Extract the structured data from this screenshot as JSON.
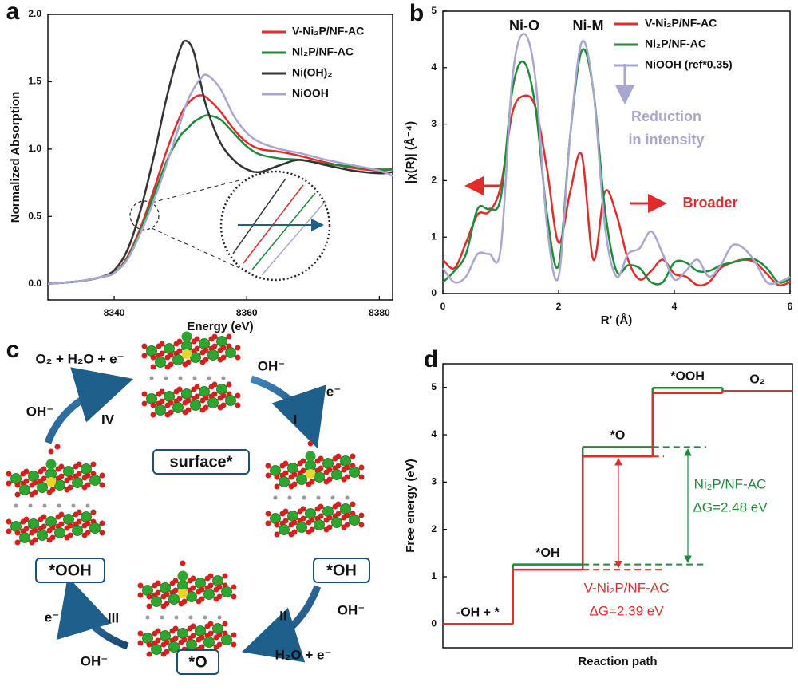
{
  "chart_data": [
    {
      "type": "line",
      "panel_label": "a",
      "xlabel": "Energy (eV)",
      "ylabel": "Normalized Absorption",
      "x": [
        8330,
        8335,
        8338,
        8340,
        8342,
        8344,
        8346,
        8348,
        8350,
        8351,
        8352,
        8353,
        8354,
        8356,
        8358,
        8360,
        8362,
        8365,
        8368,
        8372,
        8376,
        8380,
        8382
      ],
      "series": [
        {
          "name": "V-Ni₂P/NF-AC",
          "color": "#e32b2b",
          "values": [
            0,
            0.02,
            0.05,
            0.08,
            0.2,
            0.42,
            0.7,
            1.0,
            1.25,
            1.33,
            1.38,
            1.4,
            1.38,
            1.28,
            1.15,
            1.05,
            1.0,
            0.98,
            0.95,
            0.9,
            0.86,
            0.84,
            0.85
          ]
        },
        {
          "name": "Ni₂P/NF-AC",
          "color": "#1e8a3a",
          "values": [
            0,
            0.02,
            0.05,
            0.08,
            0.19,
            0.4,
            0.66,
            0.92,
            1.1,
            1.15,
            1.2,
            1.23,
            1.25,
            1.22,
            1.12,
            1.02,
            0.96,
            0.93,
            0.92,
            0.89,
            0.87,
            0.85,
            0.85
          ]
        },
        {
          "name": "Ni(OH)₂",
          "color": "#333333",
          "values": [
            0,
            0.02,
            0.05,
            0.1,
            0.25,
            0.55,
            0.95,
            1.4,
            1.75,
            1.8,
            1.72,
            1.5,
            1.3,
            1.05,
            0.92,
            0.85,
            0.83,
            0.88,
            0.92,
            0.88,
            0.84,
            0.82,
            0.83
          ]
        },
        {
          "name": "NiOOH",
          "color": "#a9a6d0",
          "values": [
            0,
            0.02,
            0.05,
            0.08,
            0.18,
            0.38,
            0.62,
            0.9,
            1.2,
            1.35,
            1.45,
            1.52,
            1.55,
            1.45,
            1.25,
            1.12,
            1.05,
            1.0,
            0.97,
            0.92,
            0.88,
            0.84,
            0.8
          ]
        }
      ],
      "xlim": [
        8330,
        8382
      ],
      "xticks": [
        8340,
        8360,
        8380
      ],
      "ylim": [
        -0.12,
        2.0
      ],
      "yticks": [
        {
          "value": 0,
          "label": "0.0"
        },
        {
          "value": 0.5,
          "label": "0.5"
        },
        {
          "value": 1,
          "label": "1.0"
        },
        {
          "value": 1.5,
          "label": "1.5"
        },
        {
          "value": 2,
          "label": "2.0"
        }
      ],
      "legend": "upper right"
    },
    {
      "type": "line",
      "panel_label": "b",
      "xlabel": "Rʹ (Å)",
      "ylabel": "|χ(R)| (Å⁻⁴)",
      "x": [
        0,
        0.2,
        0.4,
        0.6,
        0.8,
        1.0,
        1.2,
        1.4,
        1.6,
        1.8,
        2.0,
        2.2,
        2.4,
        2.6,
        2.8,
        3.0,
        3.2,
        3.4,
        3.6,
        3.8,
        4.0,
        4.2,
        4.4,
        4.6,
        4.8,
        5.0,
        5.2,
        5.4,
        5.6,
        5.8,
        6.0
      ],
      "series": [
        {
          "name": "V-Ni₂P/NF-AC",
          "color": "#e32b2b",
          "values": [
            0.6,
            0.45,
            0.9,
            1.4,
            1.45,
            1.9,
            3.2,
            3.5,
            3.3,
            2.2,
            0.9,
            1.8,
            2.45,
            0.6,
            1.8,
            1.4,
            0.6,
            0.25,
            0.4,
            0.6,
            0.35,
            0.3,
            0.15,
            0.2,
            0.45,
            0.55,
            0.6,
            0.55,
            0.35,
            0.15,
            0.2
          ]
        },
        {
          "name": "Ni₂P/NF-AC",
          "color": "#1e8a3a",
          "values": [
            0.2,
            0.4,
            0.7,
            1.5,
            1.5,
            1.7,
            3.6,
            4.1,
            3.3,
            1.4,
            0.5,
            2.8,
            4.3,
            3.6,
            1.5,
            0.4,
            0.5,
            0.45,
            0.2,
            0.2,
            0.55,
            0.55,
            0.4,
            0.4,
            0.5,
            0.55,
            0.6,
            0.6,
            0.45,
            0.2,
            0.25
          ]
        },
        {
          "name": "NiOOH (ref*0.35)",
          "color": "#a9a6d0",
          "values": [
            0.45,
            0.2,
            0.3,
            0.7,
            0.7,
            0.8,
            3.8,
            4.6,
            3.8,
            1.2,
            0.3,
            2.8,
            4.45,
            3.6,
            1.2,
            0.3,
            0.7,
            0.8,
            1.1,
            0.7,
            0.25,
            0.4,
            0.6,
            0.3,
            0.5,
            0.85,
            0.8,
            0.55,
            0.2,
            0.2,
            0.3
          ]
        }
      ],
      "xlim": [
        0,
        6
      ],
      "xticks": [
        0,
        2,
        4,
        6
      ],
      "ylim": [
        0,
        5
      ],
      "yticks": [
        0,
        1,
        2,
        3,
        4,
        5
      ],
      "legend": "upper right",
      "annotations": [
        "Ni-O",
        "Ni-M",
        "Reduction",
        "in intensity",
        "Broader"
      ]
    },
    {
      "type": "step",
      "panel_label": "d",
      "xlabel": "Reaction path",
      "ylabel": "Free energy (eV)",
      "categories": [
        "-OH + *",
        "*OH",
        "*O",
        "*OOH",
        "O₂"
      ],
      "series": [
        {
          "name": "Ni₂P/NF-AC",
          "color": "#1e8a3a",
          "values": [
            0,
            1.26,
            3.74,
            4.99,
            4.92
          ]
        },
        {
          "name": "V-Ni₂P/NF-AC",
          "color": "#e32b2b",
          "values": [
            0,
            1.15,
            3.54,
            4.88,
            4.92
          ]
        }
      ],
      "ylim": [
        -0.5,
        5.5
      ],
      "yticks": [
        0,
        1,
        2,
        3,
        4,
        5
      ],
      "annotations": [
        "ΔG=2.48 eV",
        "ΔG=2.39 eV"
      ]
    }
  ],
  "diagram": {
    "panel_label": "c",
    "nodes": [
      {
        "label": "surface*"
      },
      {
        "label": "*OH"
      },
      {
        "label": "*O"
      },
      {
        "label": "*OOH"
      }
    ],
    "steps": [
      {
        "label": "I",
        "in": "OH⁻",
        "out": "e⁻"
      },
      {
        "label": "II",
        "in": "OH⁻",
        "out": "H₂O + e⁻"
      },
      {
        "label": "III",
        "in": "OH⁻",
        "out": "e⁻"
      },
      {
        "label": "IV",
        "in": "OH⁻",
        "out": "O₂ + H₂O + e⁻"
      }
    ]
  }
}
